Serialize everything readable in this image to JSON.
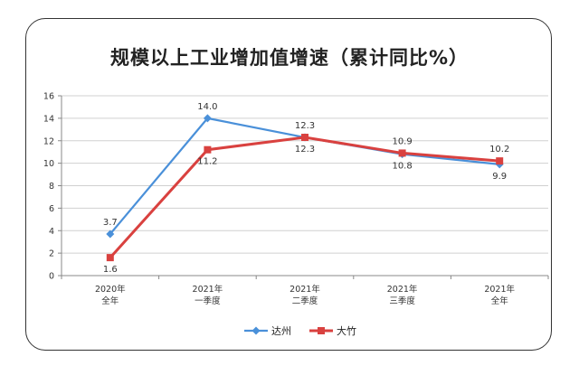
{
  "chart_data": {
    "type": "line",
    "title": "规模以上工业增加值增速（累计同比%）",
    "categories": [
      [
        "2020年",
        "全年"
      ],
      [
        "2021年",
        "一季度"
      ],
      [
        "2021年",
        "二季度"
      ],
      [
        "2021年",
        "三季度"
      ],
      [
        "2021年",
        "全年"
      ]
    ],
    "ylim": [
      0,
      16
    ],
    "yticks": [
      "0",
      "2",
      "4",
      "6",
      "8",
      "10",
      "12",
      "14",
      "16"
    ],
    "grid": true,
    "legend_position": "bottom",
    "series": [
      {
        "name": "达州",
        "color": "#4a90d9",
        "marker": "diamond",
        "values": [
          3.7,
          14.0,
          12.3,
          10.8,
          9.9
        ],
        "labels": [
          "3.7",
          "14.0",
          "12.3",
          "10.8",
          "9.9"
        ]
      },
      {
        "name": "大竹",
        "color": "#d9413f",
        "marker": "square",
        "values": [
          1.6,
          11.2,
          12.3,
          10.9,
          10.2
        ],
        "labels": [
          "1.6",
          "11.2",
          "12.3",
          "10.9",
          "10.2"
        ]
      }
    ]
  }
}
